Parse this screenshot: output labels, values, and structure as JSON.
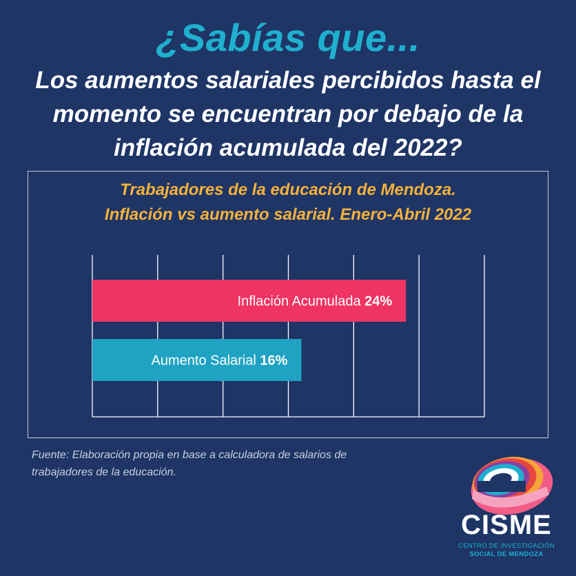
{
  "header": {
    "kicker": "¿Sabías que...",
    "headline": "Los aumentos salariales percibidos hasta el momento se encuentran por debajo de la inflación acumulada del 2022?"
  },
  "chart_data": {
    "type": "bar",
    "orientation": "horizontal",
    "title": "Trabajadores de la educación de Mendoza.\nInflación vs aumento salarial. Enero-Abril 2022",
    "xlim": [
      0,
      30
    ],
    "grid": true,
    "bars": [
      {
        "label": "Inflación Acumulada",
        "value_label": "24%",
        "value": 24,
        "color": "#ef3463"
      },
      {
        "label": "Aumento Salarial",
        "value_label": "16%",
        "value": 16,
        "color": "#1fa3c3"
      }
    ]
  },
  "footer": {
    "source": "Fuente: Elaboración propia en base a calculadora de salarios de trabajadores de la educación."
  },
  "brand": {
    "name": "CISME",
    "line1": "CENTRO DE INVESTIGACIÓN",
    "line2": "SOCIAL DE MENDOZA"
  }
}
